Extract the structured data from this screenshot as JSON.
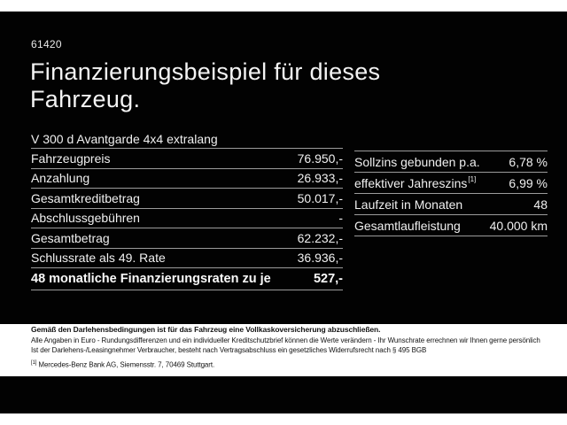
{
  "header": {
    "id_number": "61420",
    "title": "Finanzierungsbeispiel für dieses Fahrzeug."
  },
  "vehicle": {
    "model": "V 300 d Avantgarde 4x4 extralang"
  },
  "financing": {
    "rows": [
      {
        "label": "Fahrzeugpreis",
        "value": "76.950,-"
      },
      {
        "label": "Anzahlung",
        "value": "26.933,-"
      },
      {
        "label": "Gesamtkreditbetrag",
        "value": "50.017,-"
      },
      {
        "label": "Abschlussgebühren",
        "value": "-"
      },
      {
        "label": "Gesamtbetrag",
        "value": "62.232,-"
      },
      {
        "label": "Schlussrate als 49. Rate",
        "value": "36.936,-"
      }
    ],
    "total_row": {
      "label": "48 monatliche Finanzierungsraten zu je",
      "value": "527,-"
    }
  },
  "conditions": {
    "rows": [
      {
        "label": "Sollzins gebunden p.a.",
        "value": "6,78 %"
      },
      {
        "label": "effektiver Jahreszins",
        "sup": "[1]",
        "value": "6,99 %"
      },
      {
        "label": "Laufzeit in Monaten",
        "value": "48"
      },
      {
        "label": "Gesamtlaufleistung",
        "value": "40.000 km"
      }
    ]
  },
  "fine_print": {
    "insurance_note": "Gemäß den Darlehensbedingungen ist für das Fahrzeug eine Vollkaskoversicherung abzuschließen.",
    "general_note": "Alle Angaben in Euro - Rundungsdifferenzen und ein individueller Kreditschutzbrief können die Werte verändern - Ihr Wunschrate errechnen wir Ihnen gerne persönlich",
    "withdrawal_note": "Ist der Darlehens-/Leasingnehmer Verbraucher, besteht nach Vertragsabschluss ein gesetzliches Widerrufsrecht nach § 495 BGB",
    "footnote_marker": "[1]",
    "footnote_text": "Mercedes-Benz Bank AG, Siemensstr. 7, 70469 Stuttgart."
  },
  "colors": {
    "document_background": "#020202",
    "text_on_dark": "#f0f0f0",
    "separator_line": "#9b9b9b",
    "fine_print_background": "#ffffff",
    "fine_print_text": "#141414"
  }
}
